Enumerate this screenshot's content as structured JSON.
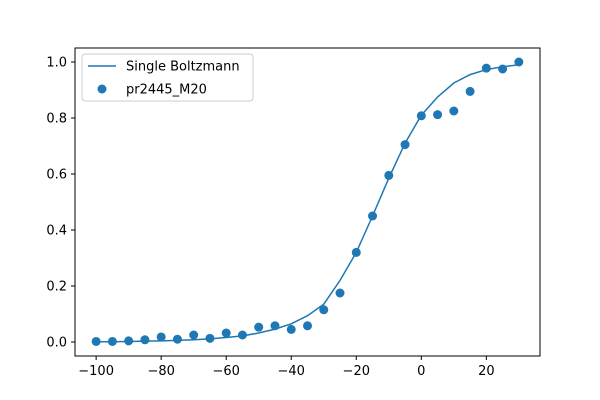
{
  "chart_data": {
    "type": "scatter",
    "title": "",
    "xlabel": "",
    "ylabel": "",
    "xlim": [
      -106.5,
      36.5
    ],
    "ylim": [
      -0.05,
      1.05
    ],
    "grid": false,
    "legend_placement": "top-left",
    "x_ticks": [
      -100,
      -80,
      -60,
      -40,
      -20,
      0,
      20
    ],
    "x_tick_labels": [
      "−100",
      "−80",
      "−60",
      "−40",
      "−20",
      "0",
      "20"
    ],
    "y_ticks": [
      0.0,
      0.2,
      0.4,
      0.6,
      0.8,
      1.0
    ],
    "y_tick_labels": [
      "0.0",
      "0.2",
      "0.4",
      "0.6",
      "0.8",
      "1.0"
    ],
    "series": [
      {
        "name": "Single Boltzmann",
        "kind": "line",
        "color": "#1f77b4",
        "x": [
          -100,
          -95,
          -90,
          -85,
          -80,
          -75,
          -70,
          -65,
          -60,
          -55,
          -50,
          -45,
          -40,
          -35,
          -30,
          -25,
          -20,
          -15,
          -10,
          -5,
          0,
          5,
          10,
          15,
          20,
          25,
          30
        ],
        "y": [
          0.001,
          0.001,
          0.002,
          0.003,
          0.004,
          0.006,
          0.008,
          0.011,
          0.016,
          0.022,
          0.032,
          0.046,
          0.065,
          0.094,
          0.135,
          0.22,
          0.32,
          0.45,
          0.585,
          0.71,
          0.81,
          0.875,
          0.925,
          0.955,
          0.973,
          0.983,
          0.99
        ]
      },
      {
        "name": "pr2445_M20",
        "kind": "scatter",
        "color": "#1f77b4",
        "x": [
          -100,
          -95,
          -90,
          -85,
          -80,
          -75,
          -70,
          -65,
          -60,
          -55,
          -50,
          -45,
          -40,
          -35,
          -30,
          -25,
          -20,
          -15,
          -10,
          -5,
          0,
          5,
          10,
          15,
          20,
          25,
          30
        ],
        "y": [
          0.002,
          0.002,
          0.004,
          0.008,
          0.018,
          0.01,
          0.025,
          0.013,
          0.032,
          0.025,
          0.053,
          0.058,
          0.045,
          0.058,
          0.115,
          0.175,
          0.32,
          0.45,
          0.595,
          0.705,
          0.808,
          0.812,
          0.825,
          0.895,
          0.978,
          0.975,
          1.0
        ]
      }
    ]
  }
}
